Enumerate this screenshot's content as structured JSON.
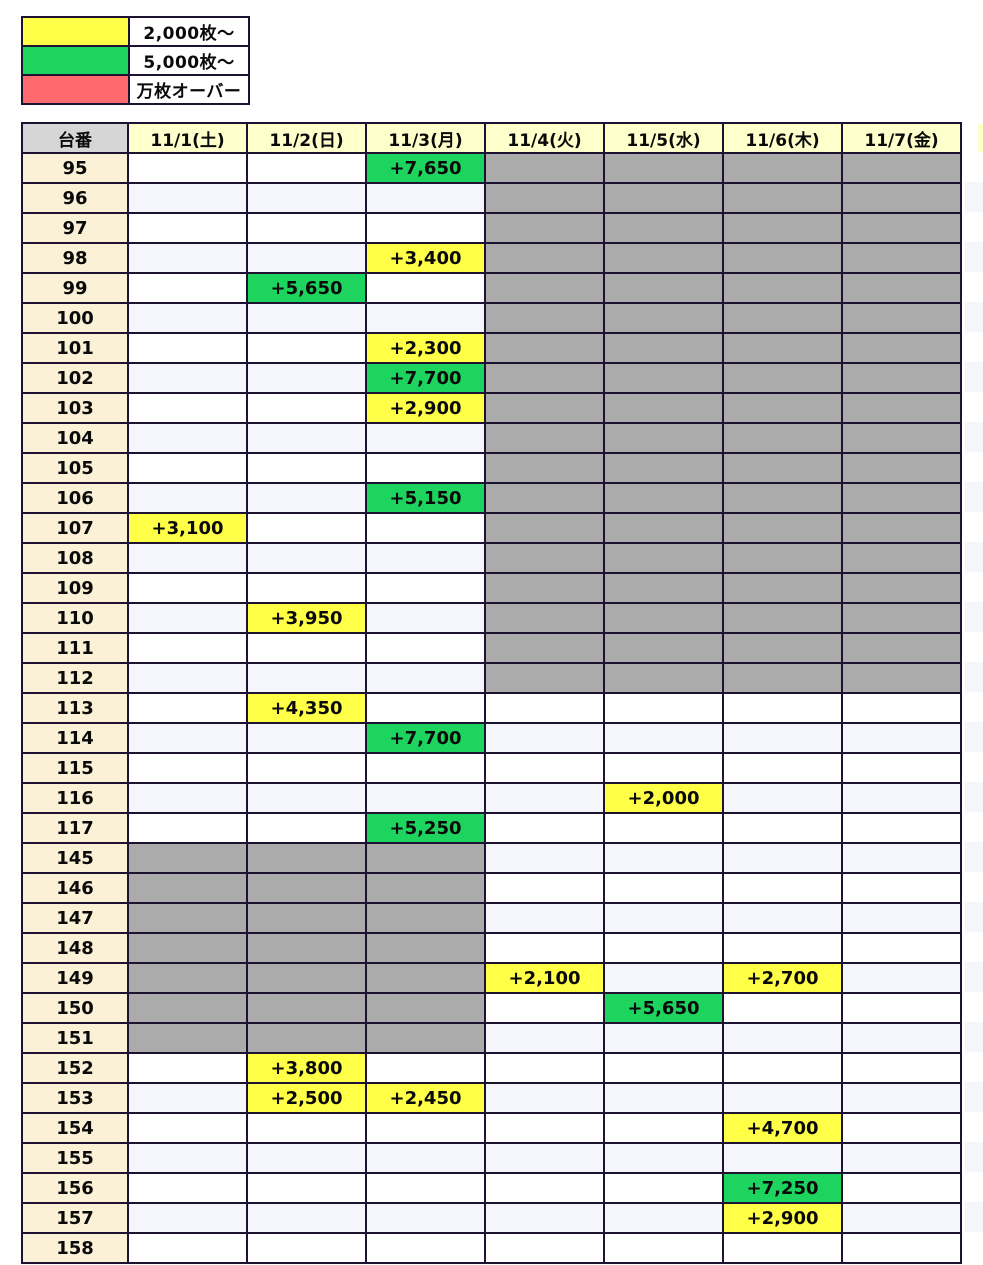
{
  "chart_data": {
    "type": "table",
    "machine_header": "台番",
    "columns": [
      "11/1(土)",
      "11/2(日)",
      "11/3(月)",
      "11/4(火)",
      "11/5(水)",
      "11/6(木)",
      "11/7(金)"
    ],
    "legend": [
      {
        "tier": "yellow",
        "color": "#FFFF47",
        "label": "2,000枚〜"
      },
      {
        "tier": "green",
        "color": "#1DD45F",
        "label": "5,000枚〜"
      },
      {
        "tier": "red",
        "color": "#FF6A6E",
        "label": "万枚オーバー"
      }
    ],
    "colors": {
      "yellow": "#FFFF47",
      "green": "#1DD45F",
      "red": "#FF6A6E",
      "blocked": "#ACABAC",
      "stripe": "#F4F6FC",
      "header_bg": "#FFFFCB",
      "machine_col_bg": "#FBF1D6",
      "corner_bg": "#D6D6D6",
      "grid": "#1E1232"
    },
    "rows": [
      {
        "machine": "95",
        "cells": [
          null,
          null,
          {
            "v": "+7,650",
            "t": "green"
          },
          "X",
          "X",
          "X",
          "X"
        ]
      },
      {
        "machine": "96",
        "cells": [
          null,
          null,
          null,
          "X",
          "X",
          "X",
          "X"
        ]
      },
      {
        "machine": "97",
        "cells": [
          null,
          null,
          null,
          "X",
          "X",
          "X",
          "X"
        ]
      },
      {
        "machine": "98",
        "cells": [
          null,
          null,
          {
            "v": "+3,400",
            "t": "yellow"
          },
          "X",
          "X",
          "X",
          "X"
        ]
      },
      {
        "machine": "99",
        "cells": [
          null,
          {
            "v": "+5,650",
            "t": "green"
          },
          null,
          "X",
          "X",
          "X",
          "X"
        ]
      },
      {
        "machine": "100",
        "cells": [
          null,
          null,
          null,
          "X",
          "X",
          "X",
          "X"
        ]
      },
      {
        "machine": "101",
        "cells": [
          null,
          null,
          {
            "v": "+2,300",
            "t": "yellow"
          },
          "X",
          "X",
          "X",
          "X"
        ]
      },
      {
        "machine": "102",
        "cells": [
          null,
          null,
          {
            "v": "+7,700",
            "t": "green"
          },
          "X",
          "X",
          "X",
          "X"
        ]
      },
      {
        "machine": "103",
        "cells": [
          null,
          null,
          {
            "v": "+2,900",
            "t": "yellow"
          },
          "X",
          "X",
          "X",
          "X"
        ]
      },
      {
        "machine": "104",
        "cells": [
          null,
          null,
          null,
          "X",
          "X",
          "X",
          "X"
        ]
      },
      {
        "machine": "105",
        "cells": [
          null,
          null,
          null,
          "X",
          "X",
          "X",
          "X"
        ]
      },
      {
        "machine": "106",
        "cells": [
          null,
          null,
          {
            "v": "+5,150",
            "t": "green"
          },
          "X",
          "X",
          "X",
          "X"
        ]
      },
      {
        "machine": "107",
        "cells": [
          {
            "v": "+3,100",
            "t": "yellow"
          },
          null,
          null,
          "X",
          "X",
          "X",
          "X"
        ]
      },
      {
        "machine": "108",
        "cells": [
          null,
          null,
          null,
          "X",
          "X",
          "X",
          "X"
        ]
      },
      {
        "machine": "109",
        "cells": [
          null,
          null,
          null,
          "X",
          "X",
          "X",
          "X"
        ]
      },
      {
        "machine": "110",
        "cells": [
          null,
          {
            "v": "+3,950",
            "t": "yellow"
          },
          null,
          "X",
          "X",
          "X",
          "X"
        ]
      },
      {
        "machine": "111",
        "cells": [
          null,
          null,
          null,
          "X",
          "X",
          "X",
          "X"
        ]
      },
      {
        "machine": "112",
        "cells": [
          null,
          null,
          null,
          "X",
          "X",
          "X",
          "X"
        ]
      },
      {
        "machine": "113",
        "cells": [
          null,
          {
            "v": "+4,350",
            "t": "yellow"
          },
          null,
          null,
          null,
          null,
          null
        ]
      },
      {
        "machine": "114",
        "cells": [
          null,
          null,
          {
            "v": "+7,700",
            "t": "green"
          },
          null,
          null,
          null,
          null
        ]
      },
      {
        "machine": "115",
        "cells": [
          null,
          null,
          null,
          null,
          null,
          null,
          null
        ]
      },
      {
        "machine": "116",
        "cells": [
          null,
          null,
          null,
          null,
          {
            "v": "+2,000",
            "t": "yellow"
          },
          null,
          null
        ]
      },
      {
        "machine": "117",
        "cells": [
          null,
          null,
          {
            "v": "+5,250",
            "t": "green"
          },
          null,
          null,
          null,
          null
        ]
      },
      {
        "machine": "145",
        "cells": [
          "X",
          "X",
          "X",
          null,
          null,
          null,
          null
        ]
      },
      {
        "machine": "146",
        "cells": [
          "X",
          "X",
          "X",
          null,
          null,
          null,
          null
        ]
      },
      {
        "machine": "147",
        "cells": [
          "X",
          "X",
          "X",
          null,
          null,
          null,
          null
        ]
      },
      {
        "machine": "148",
        "cells": [
          "X",
          "X",
          "X",
          null,
          null,
          null,
          null
        ]
      },
      {
        "machine": "149",
        "cells": [
          "X",
          "X",
          "X",
          {
            "v": "+2,100",
            "t": "yellow"
          },
          null,
          {
            "v": "+2,700",
            "t": "yellow"
          },
          null
        ]
      },
      {
        "machine": "150",
        "cells": [
          "X",
          "X",
          "X",
          null,
          {
            "v": "+5,650",
            "t": "green"
          },
          null,
          null
        ]
      },
      {
        "machine": "151",
        "cells": [
          "X",
          "X",
          "X",
          null,
          null,
          null,
          null
        ]
      },
      {
        "machine": "152",
        "cells": [
          null,
          {
            "v": "+3,800",
            "t": "yellow"
          },
          null,
          null,
          null,
          null,
          null
        ]
      },
      {
        "machine": "153",
        "cells": [
          null,
          {
            "v": "+2,500",
            "t": "yellow"
          },
          {
            "v": "+2,450",
            "t": "yellow"
          },
          null,
          null,
          null,
          null
        ]
      },
      {
        "machine": "154",
        "cells": [
          null,
          null,
          null,
          null,
          null,
          {
            "v": "+4,700",
            "t": "yellow"
          },
          null
        ]
      },
      {
        "machine": "155",
        "cells": [
          null,
          null,
          null,
          null,
          null,
          null,
          null
        ]
      },
      {
        "machine": "156",
        "cells": [
          null,
          null,
          null,
          null,
          null,
          {
            "v": "+7,250",
            "t": "green"
          },
          null
        ]
      },
      {
        "machine": "157",
        "cells": [
          null,
          null,
          null,
          null,
          null,
          {
            "v": "+2,900",
            "t": "yellow"
          },
          null
        ]
      },
      {
        "machine": "158",
        "cells": [
          null,
          null,
          null,
          null,
          null,
          null,
          null
        ]
      }
    ]
  }
}
